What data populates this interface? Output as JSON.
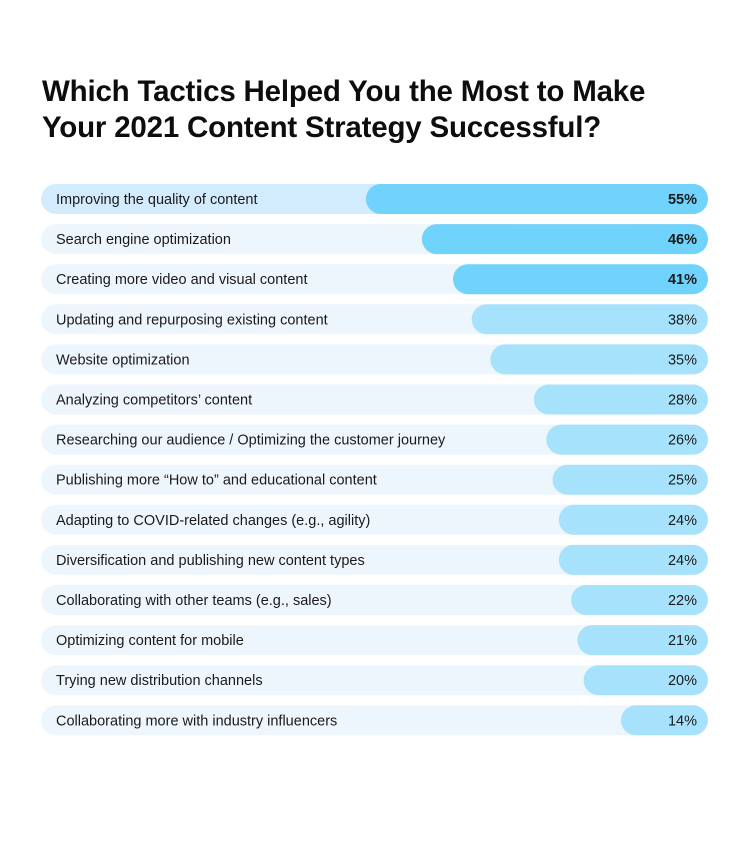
{
  "title": {
    "line1": "Which Tactics Helped You the Most to Make",
    "line2": "Your 2021 Content Strategy Successful?"
  },
  "colors": {
    "track": "#eef6fd",
    "track_highlight": "#d3ecfd",
    "bar_strong": "#6fd3fb",
    "bar_light": "#a6e2fb"
  },
  "chart_data": {
    "type": "bar",
    "orientation": "horizontal",
    "title": "Which Tactics Helped You the Most to Make Your 2021 Content Strategy Successful?",
    "categories": [
      "Improving the quality of content",
      "Search engine optimization",
      "Creating more video and visual content",
      "Updating and repurposing existing content",
      "Website optimization",
      "Analyzing competitors’ content",
      "Researching our audience / Optimizing the customer journey",
      "Publishing more “How to” and educational content",
      "Adapting to COVID-related changes (e.g., agility)",
      "Diversification and publishing new content types",
      "Collaborating with other teams (e.g., sales)",
      "Optimizing content for mobile",
      "Trying new distribution channels",
      "Collaborating more with industry influencers"
    ],
    "values": [
      55,
      46,
      41,
      38,
      35,
      28,
      26,
      25,
      24,
      24,
      22,
      21,
      20,
      14
    ],
    "value_labels": [
      "55%",
      "46%",
      "41%",
      "38%",
      "35%",
      "28%",
      "26%",
      "25%",
      "24%",
      "24%",
      "22%",
      "21%",
      "20%",
      "14%"
    ],
    "highlighted_top": 3,
    "xlim": [
      0,
      100
    ],
    "unit": "%",
    "grid": false,
    "legend": "none"
  }
}
